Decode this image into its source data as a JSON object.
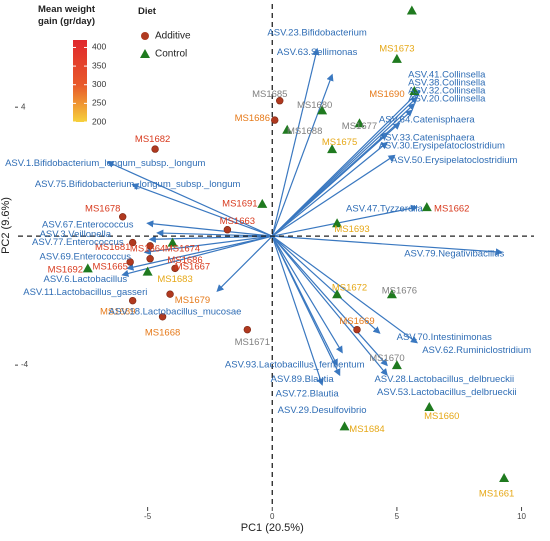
{
  "chart_data": {
    "type": "biplot",
    "xlabel": "PC1 (20.5%)",
    "ylabel": "PC2 (9.6%)",
    "xlim": [
      -10.2,
      10.5
    ],
    "ylim": [
      -8.4,
      7.2
    ],
    "x_ticks": [
      -5,
      0,
      5,
      10
    ],
    "y_ticks": [
      -4,
      4
    ],
    "grid": false,
    "reference_lines": {
      "x": 0,
      "y": 0
    },
    "legend": {
      "placement": "top-left",
      "gradient": {
        "title_line1": "Mean weight",
        "title_line2": "gain (gr/day)",
        "ticks": [
          400,
          350,
          300,
          250,
          200
        ],
        "min": 200,
        "max": 420,
        "color_low": "#f6d13c",
        "color_high": "#e0282e"
      },
      "diet_title": "Diet",
      "diet": [
        {
          "name": "Additive",
          "shape": "circle",
          "color": "#b03a20"
        },
        {
          "name": "Control",
          "shape": "triangle",
          "color": "#1f7a1f"
        }
      ]
    },
    "samples": [
      {
        "name": "MS1687",
        "x": 5.6,
        "y": 7.0,
        "diet": "Control",
        "color": "#e6a817"
      },
      {
        "name": "MS1673",
        "x": 5.0,
        "y": 5.5,
        "diet": "Control",
        "color": "#e6a817"
      },
      {
        "name": "MS1690",
        "x": 5.7,
        "y": 4.5,
        "diet": "Control",
        "color": "#e67a1a"
      },
      {
        "name": "MS1685",
        "x": 0.3,
        "y": 4.2,
        "diet": "Additive",
        "color": "#808080"
      },
      {
        "name": "MS1680",
        "x": 2.0,
        "y": 3.9,
        "diet": "Control",
        "color": "#808080"
      },
      {
        "name": "MS1686",
        "x": 0.1,
        "y": 3.6,
        "diet": "Additive",
        "color": "#e67a1a"
      },
      {
        "name": "MS1688",
        "x": 0.6,
        "y": 3.3,
        "diet": "Control",
        "color": "#808080"
      },
      {
        "name": "MS1677",
        "x": 3.5,
        "y": 3.5,
        "diet": "Control",
        "color": "#808080"
      },
      {
        "name": "MS1675",
        "x": 2.4,
        "y": 2.7,
        "diet": "Control",
        "color": "#e6a817"
      },
      {
        "name": "MS1682",
        "x": -4.7,
        "y": 2.7,
        "diet": "Additive",
        "color": "#d83a1e"
      },
      {
        "name": "MS1691",
        "x": -0.4,
        "y": 1.0,
        "diet": "Control",
        "color": "#d83a1e"
      },
      {
        "name": "MS1662",
        "x": 6.2,
        "y": 0.9,
        "diet": "Control",
        "color": "#d83a1e"
      },
      {
        "name": "MS1693",
        "x": 2.6,
        "y": 0.4,
        "diet": "Control",
        "color": "#e6a817"
      },
      {
        "name": "MS1678",
        "x": -6.0,
        "y": 0.6,
        "diet": "Additive",
        "color": "#d83a1e"
      },
      {
        "name": "MS1663",
        "x": -1.8,
        "y": 0.2,
        "diet": "Additive",
        "color": "#d83a1e"
      },
      {
        "name": "MS1681",
        "x": -5.6,
        "y": -0.2,
        "diet": "Additive",
        "color": "#d83a1e"
      },
      {
        "name": "MS1664",
        "x": -4.9,
        "y": -0.3,
        "diet": "Additive",
        "color": "#d83a1e"
      },
      {
        "name": "MS1674",
        "x": -4.0,
        "y": -0.2,
        "diet": "Control",
        "color": "#d83a1e"
      },
      {
        "name": "MS1686",
        "x": -4.9,
        "y": -0.7,
        "diet": "Additive",
        "color": "#d83a1e"
      },
      {
        "name": "MS1692",
        "x": -7.4,
        "y": -1.0,
        "diet": "Control",
        "color": "#d83a1e"
      },
      {
        "name": "MS1665",
        "x": -5.7,
        "y": -0.8,
        "diet": "Additive",
        "color": "#d83a1e"
      },
      {
        "name": "MS1667",
        "x": -3.9,
        "y": -1.0,
        "diet": "Additive",
        "color": "#d83a1e"
      },
      {
        "name": "MS1683",
        "x": -5.0,
        "y": -1.1,
        "diet": "Control",
        "color": "#e6a817"
      },
      {
        "name": "MS1679",
        "x": -4.1,
        "y": -1.8,
        "diet": "Additive",
        "color": "#e67a1a"
      },
      {
        "name": "MS1689",
        "x": -5.6,
        "y": -2.0,
        "diet": "Additive",
        "color": "#e67a1a"
      },
      {
        "name": "MS1668",
        "x": -4.4,
        "y": -2.5,
        "diet": "Additive",
        "color": "#e67a1a"
      },
      {
        "name": "MS1671",
        "x": -1.0,
        "y": -2.9,
        "diet": "Additive",
        "color": "#808080"
      },
      {
        "name": "MS1672",
        "x": 2.6,
        "y": -1.8,
        "diet": "Control",
        "color": "#e6a817"
      },
      {
        "name": "MS1676",
        "x": 4.8,
        "y": -1.8,
        "diet": "Control",
        "color": "#808080"
      },
      {
        "name": "MS1669",
        "x": 3.4,
        "y": -2.9,
        "diet": "Additive",
        "color": "#e67a1a"
      },
      {
        "name": "MS1670",
        "x": 5.0,
        "y": -4.0,
        "diet": "Control",
        "color": "#808080"
      },
      {
        "name": "MS1660",
        "x": 6.3,
        "y": -5.3,
        "diet": "Control",
        "color": "#e6a817"
      },
      {
        "name": "MS1684",
        "x": 2.9,
        "y": -5.9,
        "diet": "Control",
        "color": "#e6a817"
      },
      {
        "name": "MS1661",
        "x": 9.3,
        "y": -7.5,
        "diet": "Control",
        "color": "#e6a817"
      }
    ],
    "loadings": [
      {
        "name": "ASV.23.Bifidobacterium",
        "x": 1.8,
        "y": 5.8
      },
      {
        "name": "ASV.63.Sellimonas",
        "x": 2.4,
        "y": 5.0
      },
      {
        "name": "ASV.41.Collinsella",
        "x": 5.9,
        "y": 4.5
      },
      {
        "name": "ASV.38.Collinsella",
        "x": 5.8,
        "y": 4.3
      },
      {
        "name": "ASV.32.Collinsella",
        "x": 5.7,
        "y": 4.1
      },
      {
        "name": "ASV.20.Collinsella",
        "x": 5.6,
        "y": 3.9
      },
      {
        "name": "ASV.64.Catenisphaera",
        "x": 5.1,
        "y": 3.5
      },
      {
        "name": "ASV.33.Catenisphaera",
        "x": 4.6,
        "y": 3.2
      },
      {
        "name": "ASV.30.Erysipelatoclostridium",
        "x": 4.6,
        "y": 2.9
      },
      {
        "name": "ASV.50.Erysipelatoclostridium",
        "x": 4.9,
        "y": 2.5
      },
      {
        "name": "ASV.1.Bifidobacterium_longum_subsp._longum",
        "x": -6.6,
        "y": 2.3
      },
      {
        "name": "ASV.75.Bifidobacterium_longum_subsp._longum",
        "x": -5.6,
        "y": 1.6
      },
      {
        "name": "ASV.47.Tyzzerella",
        "x": 5.8,
        "y": 0.9
      },
      {
        "name": "ASV.67.Enterococcus",
        "x": -5.0,
        "y": 0.4
      },
      {
        "name": "ASV.3.Veillonella",
        "x": -4.6,
        "y": 0.1
      },
      {
        "name": "ASV.77.Enterococcus",
        "x": -4.9,
        "y": -0.1
      },
      {
        "name": "ASV.69.Enterococcus",
        "x": -5.1,
        "y": -0.5
      },
      {
        "name": "ASV.79.Negativibacillus",
        "x": 9.2,
        "y": -0.5
      },
      {
        "name": "ASV.6.Lactobacillus",
        "x": -5.8,
        "y": -1.0
      },
      {
        "name": "ASV.11.Lactobacillus_gasseri",
        "x": -6.0,
        "y": -1.2
      },
      {
        "name": "ASV.18.Lactobacillus_mucosae",
        "x": -2.2,
        "y": -1.7
      },
      {
        "name": "ASV.70.Intestinimonas",
        "x": 4.3,
        "y": -3.0
      },
      {
        "name": "ASV.62.Ruminiclostridium",
        "x": 5.8,
        "y": -3.3
      },
      {
        "name": "ASV.93.Lactobacillus_fermentum",
        "x": 2.8,
        "y": -3.6
      },
      {
        "name": "ASV.89.Blautia",
        "x": 2.6,
        "y": -4.0
      },
      {
        "name": "ASV.28.Lactobacillus_delbrueckii",
        "x": 4.6,
        "y": -4.0
      },
      {
        "name": "ASV.72.Blautia",
        "x": 2.7,
        "y": -4.3
      },
      {
        "name": "ASV.53.Lactobacillus_delbrueckii",
        "x": 4.6,
        "y": -4.3
      },
      {
        "name": "ASV.29.Desulfovibrio",
        "x": 2.0,
        "y": -4.6
      }
    ]
  },
  "sample_labels": [
    {
      "name": "MS1687",
      "lx": 5.6,
      "ly": 7.4,
      "anchor": "middle"
    },
    {
      "name": "MS1673",
      "lx": 5.0,
      "ly": 5.8,
      "anchor": "middle"
    },
    {
      "name": "MS1690",
      "lx": 4.6,
      "ly": 4.4,
      "anchor": "middle"
    },
    {
      "name": "MS1685",
      "lx": -0.1,
      "ly": 4.4,
      "anchor": "middle"
    },
    {
      "name": "MS1680",
      "lx": 1.7,
      "ly": 4.05,
      "anchor": "middle"
    },
    {
      "name": "MS1686",
      "lx": -0.8,
      "ly": 3.65,
      "anchor": "middle"
    },
    {
      "name": "MS1688",
      "lx": 1.3,
      "ly": 3.25,
      "anchor": "middle"
    },
    {
      "name": "MS1677",
      "lx": 3.5,
      "ly": 3.4,
      "anchor": "middle"
    },
    {
      "name": "MS1675",
      "lx": 2.7,
      "ly": 2.9,
      "anchor": "middle"
    },
    {
      "name": "MS1682",
      "lx": -4.8,
      "ly": 3.0,
      "anchor": "middle"
    },
    {
      "name": "MS1691",
      "lx": -1.3,
      "ly": 1.0,
      "anchor": "middle"
    },
    {
      "name": "MS1662",
      "lx": 7.2,
      "ly": 0.85,
      "anchor": "middle"
    },
    {
      "name": "MS1693",
      "lx": 3.2,
      "ly": 0.2,
      "anchor": "middle"
    },
    {
      "name": "MS1678",
      "lx": -6.8,
      "ly": 0.85,
      "anchor": "middle"
    },
    {
      "name": "MS1663",
      "lx": -1.4,
      "ly": 0.45,
      "anchor": "middle"
    },
    {
      "name": "MS1681",
      "lx": -6.4,
      "ly": -0.35,
      "anchor": "middle"
    },
    {
      "name": "MS1664",
      "lx": -5.0,
      "ly": -0.4,
      "anchor": "middle"
    },
    {
      "name": "MS1674",
      "lx": -3.6,
      "ly": -0.4,
      "anchor": "middle"
    },
    {
      "name": "MS1686",
      "lx": -3.5,
      "ly": -0.75,
      "anchor": "middle"
    },
    {
      "name": "MS1692",
      "lx": -8.3,
      "ly": -1.05,
      "anchor": "middle"
    },
    {
      "name": "MS1665",
      "lx": -6.5,
      "ly": -0.95,
      "anchor": "middle"
    },
    {
      "name": "MS1667",
      "lx": -3.2,
      "ly": -0.95,
      "anchor": "middle"
    },
    {
      "name": "MS1683",
      "lx": -3.9,
      "ly": -1.35,
      "anchor": "middle"
    },
    {
      "name": "MS1679",
      "lx": -3.2,
      "ly": -2.0,
      "anchor": "middle"
    },
    {
      "name": "MS1689",
      "lx": -6.2,
      "ly": -2.35,
      "anchor": "middle"
    },
    {
      "name": "MS1668",
      "lx": -4.4,
      "ly": -3.0,
      "anchor": "middle"
    },
    {
      "name": "MS1671",
      "lx": -0.8,
      "ly": -3.3,
      "anchor": "middle"
    },
    {
      "name": "MS1672",
      "lx": 3.1,
      "ly": -1.6,
      "anchor": "middle"
    },
    {
      "name": "MS1676",
      "lx": 5.1,
      "ly": -1.7,
      "anchor": "middle"
    },
    {
      "name": "MS1669",
      "lx": 3.4,
      "ly": -2.65,
      "anchor": "middle"
    },
    {
      "name": "MS1670",
      "lx": 4.6,
      "ly": -3.8,
      "anchor": "middle"
    },
    {
      "name": "MS1660",
      "lx": 6.8,
      "ly": -5.6,
      "anchor": "middle"
    },
    {
      "name": "MS1684",
      "lx": 3.8,
      "ly": -6.0,
      "anchor": "middle"
    },
    {
      "name": "MS1661",
      "lx": 9.0,
      "ly": -8.0,
      "anchor": "middle"
    }
  ],
  "loading_labels": [
    {
      "name": "ASV.23.Bifidobacterium",
      "lx": 1.8,
      "ly": 6.3,
      "anchor": "middle"
    },
    {
      "name": "ASV.63.Sellimonas",
      "lx": 1.8,
      "ly": 5.7,
      "anchor": "middle"
    },
    {
      "name": "ASV.41.Collinsella",
      "lx": 7.0,
      "ly": 5.0,
      "anchor": "middle"
    },
    {
      "name": "ASV.38.Collinsella",
      "lx": 7.0,
      "ly": 4.75,
      "anchor": "middle"
    },
    {
      "name": "ASV.32.Collinsella",
      "lx": 7.0,
      "ly": 4.5,
      "anchor": "middle"
    },
    {
      "name": "ASV.20.Collinsella",
      "lx": 7.0,
      "ly": 4.25,
      "anchor": "middle"
    },
    {
      "name": "ASV.64.Catenisphaera",
      "lx": 6.2,
      "ly": 3.6,
      "anchor": "middle"
    },
    {
      "name": "ASV.33.Catenisphaera",
      "lx": 6.2,
      "ly": 3.05,
      "anchor": "middle"
    },
    {
      "name": "ASV.30.Erysipelatoclostridium",
      "lx": 6.8,
      "ly": 2.8,
      "anchor": "middle"
    },
    {
      "name": "ASV.50.Erysipelatoclostridium",
      "lx": 7.3,
      "ly": 2.35,
      "anchor": "middle"
    },
    {
      "name": "ASV.1.Bifidobacterium_longum_subsp._longum",
      "lx": -6.7,
      "ly": 2.25,
      "anchor": "middle"
    },
    {
      "name": "ASV.75.Bifidobacterium_longum_subsp._longum",
      "lx": -5.4,
      "ly": 1.6,
      "anchor": "middle"
    },
    {
      "name": "ASV.47.Tyzzerella",
      "lx": 4.5,
      "ly": 0.85,
      "anchor": "middle"
    },
    {
      "name": "ASV.67.Enterococcus",
      "lx": -7.4,
      "ly": 0.35,
      "anchor": "middle"
    },
    {
      "name": "ASV.3.Veillonella",
      "lx": -7.9,
      "ly": 0.05,
      "anchor": "middle"
    },
    {
      "name": "ASV.77.Enterococcus",
      "lx": -7.8,
      "ly": -0.2,
      "anchor": "middle"
    },
    {
      "name": "ASV.69.Enterococcus",
      "lx": -7.5,
      "ly": -0.65,
      "anchor": "middle"
    },
    {
      "name": "ASV.79.Negativibacillus",
      "lx": 7.3,
      "ly": -0.55,
      "anchor": "middle"
    },
    {
      "name": "ASV.6.Lactobacillus",
      "lx": -7.5,
      "ly": -1.35,
      "anchor": "middle"
    },
    {
      "name": "ASV.11.Lactobacillus_gasseri",
      "lx": -7.5,
      "ly": -1.75,
      "anchor": "middle"
    },
    {
      "name": "ASV.18.Lactobacillus_mucosae",
      "lx": -3.9,
      "ly": -2.35,
      "anchor": "middle"
    },
    {
      "name": "ASV.70.Intestinimonas",
      "lx": 6.9,
      "ly": -3.15,
      "anchor": "middle"
    },
    {
      "name": "ASV.62.Ruminiclostridium",
      "lx": 8.2,
      "ly": -3.55,
      "anchor": "middle"
    },
    {
      "name": "ASV.93.Lactobacillus_fermentum",
      "lx": 0.9,
      "ly": -4.0,
      "anchor": "middle"
    },
    {
      "name": "ASV.89.Blautia",
      "lx": 1.2,
      "ly": -4.45,
      "anchor": "middle"
    },
    {
      "name": "ASV.28.Lactobacillus_delbrueckii",
      "lx": 6.9,
      "ly": -4.45,
      "anchor": "middle"
    },
    {
      "name": "ASV.72.Blautia",
      "lx": 1.4,
      "ly": -4.9,
      "anchor": "middle"
    },
    {
      "name": "ASV.53.Lactobacillus_delbrueckii",
      "lx": 7.0,
      "ly": -4.85,
      "anchor": "middle"
    },
    {
      "name": "ASV.29.Desulfovibrio",
      "lx": 2.0,
      "ly": -5.4,
      "anchor": "middle"
    }
  ]
}
